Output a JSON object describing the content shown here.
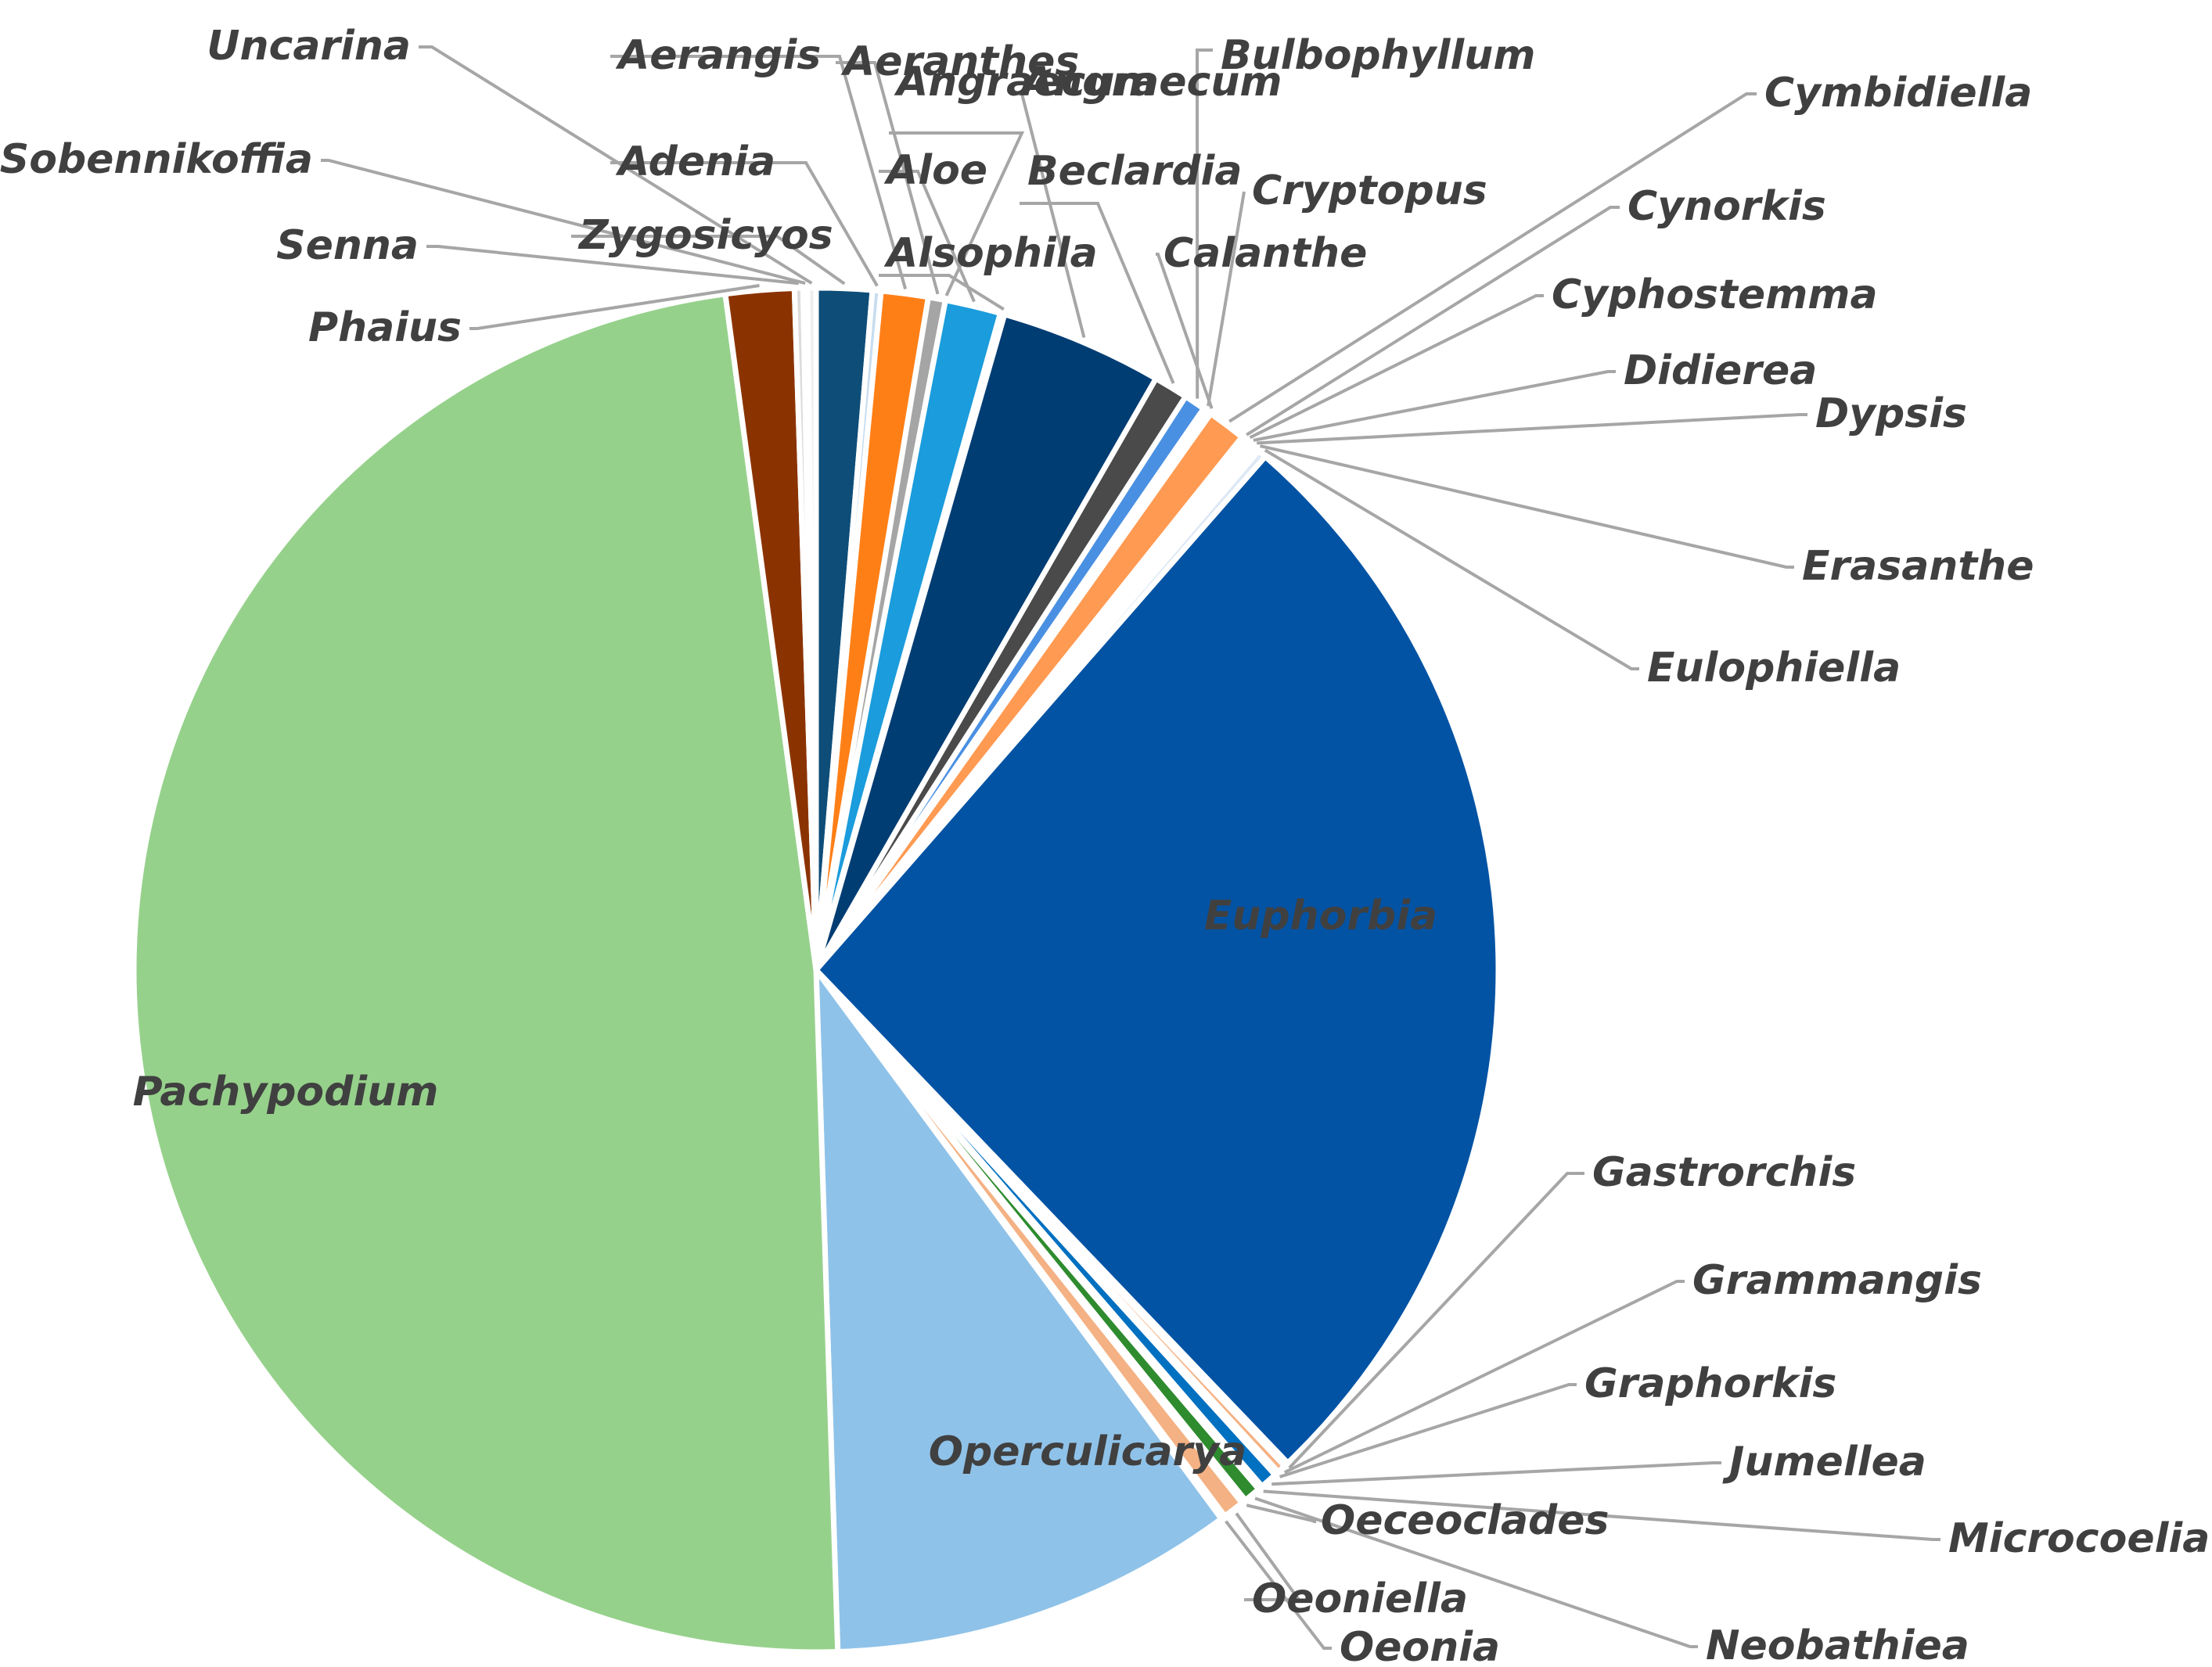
{
  "chart_data": {
    "type": "pie",
    "title": "",
    "start_angle_deg": 0,
    "direction": "clockwise",
    "slices": [
      {
        "label": "Zygosicyos",
        "value": 1.3,
        "color": "#0e4d78"
      },
      {
        "label": "Adenia",
        "value": 0.2,
        "color": "#c7dcef"
      },
      {
        "label": "Aerangis",
        "value": 1.1,
        "color": "#ff7f17"
      },
      {
        "label": "Aeranthes",
        "value": 0.4,
        "color": "#a5a5a5"
      },
      {
        "label": "Angraecum",
        "value": 0.0,
        "color": "#ffc000"
      },
      {
        "label": "Aloe",
        "value": 1.3,
        "color": "#1b9cdc"
      },
      {
        "label": "Alsophila",
        "value": 0.1,
        "color": "#70ad47"
      },
      {
        "label": "Angraecum",
        "value": 3.8,
        "color": "#003d73"
      },
      {
        "label": "Beclardia",
        "value": 0.8,
        "color": "#4a4a4a"
      },
      {
        "label": "Bulbophyllum",
        "value": 0.5,
        "color": "#4a90e2"
      },
      {
        "label": "Cryptopus",
        "value": 0.1,
        "color": "#5a9e3a"
      },
      {
        "label": "Calanthe",
        "value": 0.1,
        "color": "#2a5d9a"
      },
      {
        "label": "Cymbidiella",
        "value": 0.9,
        "color": "#ff9a52"
      },
      {
        "label": "Cynorkis",
        "value": 0.1,
        "color": "#bfbfbf"
      },
      {
        "label": "Cyphostemma",
        "value": 0.1,
        "color": "#ffd966"
      },
      {
        "label": "Didierea",
        "value": 0.1,
        "color": "#7fbde8"
      },
      {
        "label": "Dypsis",
        "value": 0.1,
        "color": "#9ad378"
      },
      {
        "label": "Erasanthe",
        "value": 0.1,
        "color": "#c7dcef"
      },
      {
        "label": "Eulophiella",
        "value": 0.2,
        "color": "#dde8f5"
      },
      {
        "label": "Euphorbia",
        "value": 26.1,
        "color": "#0353a4"
      },
      {
        "label": "Gastrorchis",
        "value": 0.1,
        "color": "#f8cbad"
      },
      {
        "label": "Grammangis",
        "value": 0.2,
        "color": "#f4b183"
      },
      {
        "label": "Graphorkis",
        "value": 0.1,
        "color": "#bfbfbf"
      },
      {
        "label": "Jumellea",
        "value": 0.4,
        "color": "#0070c0"
      },
      {
        "label": "Microcoelia",
        "value": 0.1,
        "color": "#ffc000"
      },
      {
        "label": "Neobathiea",
        "value": 0.4,
        "color": "#2e8b2e"
      },
      {
        "label": "Oeceoclades",
        "value": 0.1,
        "color": "#cfcfcf"
      },
      {
        "label": "Oeoniella",
        "value": 0.5,
        "color": "#f4b183"
      },
      {
        "label": "Oeonia",
        "value": 0.1,
        "color": "#9dc3e6"
      },
      {
        "label": "Operculicarya",
        "value": 9.5,
        "color": "#8fc2e8"
      },
      {
        "label": "Pachypodium",
        "value": 47.8,
        "color": "#96d18b"
      },
      {
        "label": "Phaius",
        "value": 1.6,
        "color": "#8b3300"
      },
      {
        "label": "Senna",
        "value": 0.2,
        "color": "#dcdcdc"
      },
      {
        "label": "Sobennikoffia",
        "value": 0.1,
        "color": "#cfcfcf"
      },
      {
        "label": "Uncarina",
        "value": 0.2,
        "color": "#eeeeee"
      }
    ]
  }
}
